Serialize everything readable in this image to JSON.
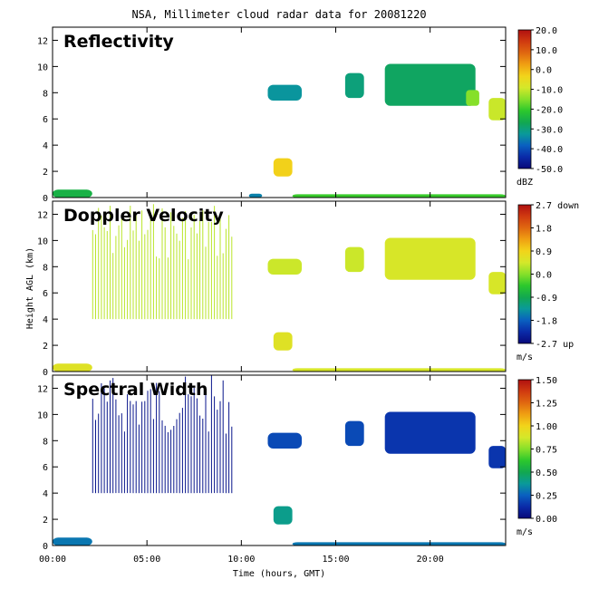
{
  "chart_data": {
    "type": "heatmap",
    "title": "NSA, Millimeter cloud radar data for 20081220",
    "xlabel": "Time (hours, GMT)",
    "ylabel": "Height AGL (km)",
    "xlim": [
      0,
      24
    ],
    "ylim": [
      0,
      13
    ],
    "xticks": [
      "00:00",
      "05:00",
      "10:00",
      "15:00",
      "20:00"
    ],
    "xtick_values": [
      0,
      5,
      10,
      15,
      20
    ],
    "yticks": [
      "0",
      "2",
      "4",
      "6",
      "8",
      "10",
      "12"
    ],
    "ytick_values": [
      0,
      2,
      4,
      6,
      8,
      10,
      12
    ],
    "panels": [
      {
        "name": "Reflectivity",
        "unit": "dBZ",
        "colorbar_range": [
          -50,
          20
        ],
        "colorbar_ticks": [
          20.0,
          10.0,
          0.0,
          -10.0,
          -20.0,
          -30.0,
          -40.0,
          -50.0
        ],
        "colorbar_labels": [
          "20.0",
          "10.0",
          "0.0",
          "-10.0",
          "-20.0",
          "-30.0",
          "-40.0",
          "-50.0"
        ],
        "regions": [
          {
            "t0": 0,
            "t1": 2.1,
            "z0": 0,
            "z1": 0.6,
            "value": -25
          },
          {
            "t0": 10.4,
            "t1": 11.1,
            "z0": 0,
            "z1": 0.3,
            "value": -35
          },
          {
            "t0": 12.7,
            "t1": 24,
            "z0": 0,
            "z1": 0.25,
            "value": -20
          },
          {
            "t0": 11.7,
            "t1": 12.7,
            "z0": 1.6,
            "z1": 3.0,
            "value": -3
          },
          {
            "t0": 11.4,
            "t1": 13.2,
            "z0": 7.4,
            "z1": 8.6,
            "value": -33
          },
          {
            "t0": 15.5,
            "t1": 16.5,
            "z0": 7.6,
            "z1": 9.5,
            "value": -30
          },
          {
            "t0": 17.6,
            "t1": 22.4,
            "z0": 7.0,
            "z1": 10.2,
            "value": -28
          },
          {
            "t0": 21.9,
            "t1": 22.6,
            "z0": 7.0,
            "z1": 8.2,
            "value": -15
          },
          {
            "t0": 23.1,
            "t1": 24,
            "z0": 5.9,
            "z1": 7.6,
            "value": -10
          }
        ]
      },
      {
        "name": "Doppler Velocity",
        "unit": "m/s",
        "colorbar_range": [
          -2.7,
          2.7
        ],
        "colorbar_ticks": [
          2.7,
          1.8,
          0.9,
          0.0,
          -0.9,
          -1.8,
          -2.7
        ],
        "colorbar_labels": [
          "2.7 down",
          "1.8",
          "0.9",
          "0.0",
          "-0.9",
          "-1.8",
          "-2.7 up"
        ],
        "regions": [
          {
            "t0": 2.1,
            "t1": 9.5,
            "z0": 4.0,
            "z1": 13,
            "value": 0.3,
            "streaks": true
          },
          {
            "t0": 0,
            "t1": 2.1,
            "z0": 0,
            "z1": 0.6,
            "value": 0.6
          },
          {
            "t0": 12.7,
            "t1": 24,
            "z0": 0,
            "z1": 0.25,
            "value": 0.5
          },
          {
            "t0": 11.7,
            "t1": 12.7,
            "z0": 1.6,
            "z1": 3.0,
            "value": 0.6
          },
          {
            "t0": 11.4,
            "t1": 13.2,
            "z0": 7.4,
            "z1": 8.6,
            "value": 0.4
          },
          {
            "t0": 15.5,
            "t1": 16.5,
            "z0": 7.6,
            "z1": 9.5,
            "value": 0.4
          },
          {
            "t0": 17.6,
            "t1": 22.4,
            "z0": 7.0,
            "z1": 10.2,
            "value": 0.5
          },
          {
            "t0": 23.1,
            "t1": 24,
            "z0": 5.9,
            "z1": 7.6,
            "value": 0.5
          }
        ]
      },
      {
        "name": "Spectral Width",
        "unit": "m/s",
        "colorbar_range": [
          0,
          1.5
        ],
        "colorbar_ticks": [
          1.5,
          1.25,
          1.0,
          0.75,
          0.5,
          0.25,
          0.0
        ],
        "colorbar_labels": [
          "1.50",
          "1.25",
          "1.00",
          "0.75",
          "0.50",
          "0.25",
          "0.00"
        ],
        "regions": [
          {
            "t0": 2.1,
            "t1": 9.5,
            "z0": 4.0,
            "z1": 13,
            "value": 0.05,
            "streaks": true
          },
          {
            "t0": 0,
            "t1": 2.1,
            "z0": 0,
            "z1": 0.6,
            "value": 0.3
          },
          {
            "t0": 12.7,
            "t1": 24,
            "z0": 0,
            "z1": 0.25,
            "value": 0.3
          },
          {
            "t0": 11.7,
            "t1": 12.7,
            "z0": 1.6,
            "z1": 3.0,
            "value": 0.4
          },
          {
            "t0": 11.4,
            "t1": 13.2,
            "z0": 7.4,
            "z1": 8.6,
            "value": 0.2
          },
          {
            "t0": 15.5,
            "t1": 16.5,
            "z0": 7.6,
            "z1": 9.5,
            "value": 0.2
          },
          {
            "t0": 17.6,
            "t1": 22.4,
            "z0": 7.0,
            "z1": 10.2,
            "value": 0.15
          },
          {
            "t0": 23.1,
            "t1": 24,
            "z0": 5.9,
            "z1": 7.6,
            "value": 0.15
          }
        ]
      }
    ]
  }
}
